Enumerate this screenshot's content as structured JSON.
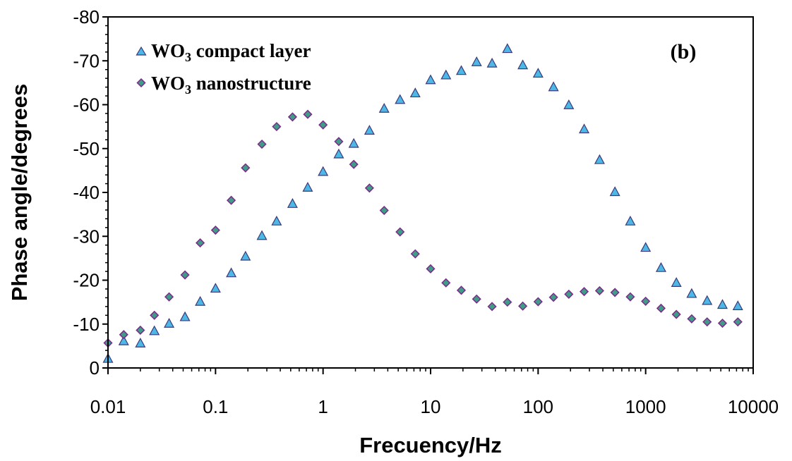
{
  "chart_data": {
    "type": "scatter",
    "xlabel": "Frecuency/Hz",
    "ylabel": "Phase angle/degrees",
    "xscale": "log",
    "xlim": [
      0.01,
      10000
    ],
    "ylim": [
      0,
      -80
    ],
    "xticks": [
      "0.01",
      "0.1",
      "1",
      "10",
      "100",
      "1000",
      "10000"
    ],
    "yticks": [
      "0",
      "-10",
      "-20",
      "-30",
      "-40",
      "-50",
      "-60",
      "-70",
      "-80"
    ],
    "panel_label": "(b)",
    "legend_position": "top-left",
    "grid": false,
    "series": [
      {
        "name": "WO",
        "name_sub": "3",
        "name_rest": " compact layer",
        "marker": "triangle",
        "color": "#4db8e6",
        "points": [
          [
            0.01,
            -2.0
          ],
          [
            0.014,
            -6.0
          ],
          [
            0.02,
            -5.5
          ],
          [
            0.027,
            -8.3
          ],
          [
            0.037,
            -10.0
          ],
          [
            0.052,
            -11.5
          ],
          [
            0.072,
            -15.0
          ],
          [
            0.1,
            -18.0
          ],
          [
            0.14,
            -21.5
          ],
          [
            0.19,
            -25.3
          ],
          [
            0.27,
            -30.0
          ],
          [
            0.37,
            -33.3
          ],
          [
            0.52,
            -37.3
          ],
          [
            0.72,
            -41.0
          ],
          [
            1.0,
            -44.6
          ],
          [
            1.4,
            -48.6
          ],
          [
            1.93,
            -51.0
          ],
          [
            2.7,
            -54.0
          ],
          [
            3.7,
            -59.0
          ],
          [
            5.2,
            -61.0
          ],
          [
            7.2,
            -62.5
          ],
          [
            10.0,
            -65.5
          ],
          [
            13.9,
            -66.6
          ],
          [
            19.3,
            -67.6
          ],
          [
            26.8,
            -69.6
          ],
          [
            37.3,
            -69.3
          ],
          [
            51.8,
            -72.6
          ],
          [
            72.0,
            -68.9
          ],
          [
            100,
            -67.0
          ],
          [
            139,
            -63.9
          ],
          [
            193,
            -59.8
          ],
          [
            268,
            -54.3
          ],
          [
            373,
            -47.3
          ],
          [
            518,
            -40.0
          ],
          [
            720,
            -33.3
          ],
          [
            1000,
            -27.3
          ],
          [
            1390,
            -22.7
          ],
          [
            1930,
            -19.3
          ],
          [
            2680,
            -16.8
          ],
          [
            3730,
            -15.2
          ],
          [
            5180,
            -14.3
          ],
          [
            7200,
            -14.0
          ]
        ]
      },
      {
        "name": "WO",
        "name_sub": "3",
        "name_rest": " nanostructure",
        "marker": "diamond",
        "color": "#3f9c86",
        "points": [
          [
            0.01,
            -5.7
          ],
          [
            0.014,
            -7.6
          ],
          [
            0.02,
            -8.6
          ],
          [
            0.027,
            -12.0
          ],
          [
            0.037,
            -16.2
          ],
          [
            0.052,
            -21.2
          ],
          [
            0.072,
            -28.5
          ],
          [
            0.1,
            -31.4
          ],
          [
            0.14,
            -38.2
          ],
          [
            0.19,
            -45.6
          ],
          [
            0.27,
            -51.0
          ],
          [
            0.37,
            -55.0
          ],
          [
            0.52,
            -57.2
          ],
          [
            0.72,
            -57.8
          ],
          [
            1.0,
            -55.4
          ],
          [
            1.4,
            -51.6
          ],
          [
            1.93,
            -46.4
          ],
          [
            2.7,
            -41.0
          ],
          [
            3.7,
            -35.9
          ],
          [
            5.2,
            -31.0
          ],
          [
            7.2,
            -26.0
          ],
          [
            10.0,
            -22.6
          ],
          [
            13.9,
            -19.4
          ],
          [
            19.3,
            -17.7
          ],
          [
            26.8,
            -15.7
          ],
          [
            37.3,
            -14.0
          ],
          [
            51.8,
            -15.0
          ],
          [
            72.0,
            -14.1
          ],
          [
            100,
            -15.1
          ],
          [
            139,
            -16.1
          ],
          [
            193,
            -16.8
          ],
          [
            268,
            -17.4
          ],
          [
            373,
            -17.6
          ],
          [
            518,
            -17.2
          ],
          [
            720,
            -16.2
          ],
          [
            1000,
            -15.2
          ],
          [
            1390,
            -13.6
          ],
          [
            1930,
            -12.2
          ],
          [
            2680,
            -11.2
          ],
          [
            3730,
            -10.5
          ],
          [
            5180,
            -10.2
          ],
          [
            7200,
            -10.5
          ]
        ]
      }
    ]
  }
}
